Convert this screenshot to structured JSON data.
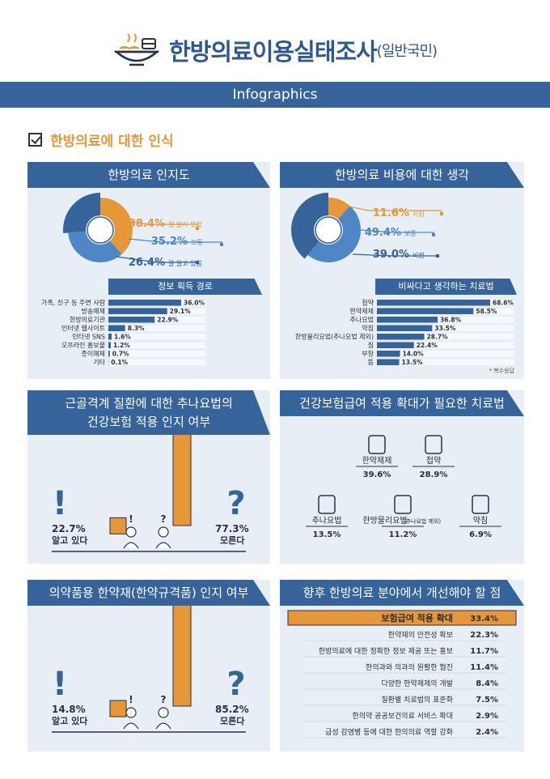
{
  "header": {
    "title": "한방의료이용실태조사",
    "subtitle": "(일반국민)",
    "banner": "Infographics",
    "section": "한방의료에 대한 인식"
  },
  "colors": {
    "navy": "#35639a",
    "orange": "#e69738",
    "light": "#e7eef6",
    "midblue": "#4f86c6"
  },
  "panels": {
    "awareness": {
      "title": "한방의료 인지도",
      "sub": "정보 획득 경로"
    },
    "cost": {
      "title": "한방의료 비용에 대한 생각",
      "sub": "비싸다고 생각하는 치료법",
      "note": "* 복수응답"
    },
    "chuna": {
      "title_line1": "근골격계 질환에 대한 추나요법의",
      "title_line2": "건강보험 적용 인지 여부"
    },
    "expand": {
      "title": "건강보험급여 적용 확대가 필요한 치료법"
    },
    "herbal": {
      "title": "의약품용 한약재(한약규격품) 인지 여부"
    },
    "improve": {
      "title": "향후 한방의료 분야에서 개선해야 할 점"
    }
  },
  "chart_data": [
    {
      "type": "pie",
      "title": "한방의료 인지도",
      "labels": [
        "잘 알지 못함",
        "보통",
        "잘 알고 있음"
      ],
      "values": [
        38.4,
        35.2,
        26.4
      ],
      "value_labels": [
        "38.4%",
        "35.2%",
        "26.4%"
      ]
    },
    {
      "type": "bar",
      "title": "정보 획득 경로",
      "categories": [
        "가족, 친구 등 주변 사람",
        "방송매체",
        "한방의료기관",
        "인터넷 웹사이트",
        "인터넷 SNS",
        "오프라인 홍보물",
        "종이매체",
        "기타"
      ],
      "values": [
        36.0,
        29.1,
        22.9,
        8.3,
        1.6,
        1.2,
        0.7,
        0.1
      ],
      "value_labels": [
        "36.0%",
        "29.1%",
        "22.9%",
        "8.3%",
        "1.6%",
        "1.2%",
        "0.7%",
        "0.1%"
      ]
    },
    {
      "type": "pie",
      "title": "한방의료 비용에 대한 생각",
      "labels": [
        "저렴",
        "보통",
        "비쌈"
      ],
      "values": [
        11.6,
        49.4,
        39.0
      ],
      "value_labels": [
        "11.6%",
        "49.4%",
        "39.0%"
      ]
    },
    {
      "type": "bar",
      "title": "비싸다고 생각하는 치료법",
      "categories": [
        "첩약",
        "한약제제",
        "추나요법",
        "약침",
        "한방물리요법(추나요법 제외)",
        "침",
        "부항",
        "뜸"
      ],
      "values": [
        68.6,
        58.5,
        36.8,
        33.5,
        28.7,
        22.4,
        14.0,
        13.5
      ],
      "value_labels": [
        "68.6%",
        "58.5%",
        "36.8%",
        "33.5%",
        "28.7%",
        "22.4%",
        "14.0%",
        "13.5%"
      ]
    },
    {
      "type": "bar",
      "title": "근골격계 질환에 대한 추나요법의 건강보험 적용 인지 여부",
      "categories": [
        "알고 있다",
        "모른다"
      ],
      "values": [
        22.7,
        77.3
      ],
      "value_labels": [
        "22.7%",
        "77.3%"
      ]
    },
    {
      "type": "table",
      "title": "건강보험급여 적용 확대가 필요한 치료법",
      "categories": [
        "한약제제",
        "첩약",
        "추나요법",
        "한방물리요법",
        "약침"
      ],
      "category_notes": [
        "",
        "",
        "",
        "(추나요법 제외)",
        ""
      ],
      "values": [
        39.6,
        28.9,
        13.5,
        11.2,
        6.9
      ],
      "value_labels": [
        "39.6%",
        "28.9%",
        "13.5%",
        "11.2%",
        "6.9%"
      ]
    },
    {
      "type": "bar",
      "title": "의약품용 한약재(한약규격품) 인지 여부",
      "categories": [
        "알고 있다",
        "모른다"
      ],
      "values": [
        14.8,
        85.2
      ],
      "value_labels": [
        "14.8%",
        "85.2%"
      ]
    },
    {
      "type": "table",
      "title": "향후 한방의료 분야에서 개선해야 할 점",
      "categories": [
        "보험급여 적용 확대",
        "한약재의 안전성 확보",
        "한방의료에 대한 정확한 정보 제공 또는 홍보",
        "한의과와 의과의 원활한 협진",
        "다양한 한약제제의 개발",
        "질환별 치료법의 표준화",
        "한의약 공공보건의료 서비스 확대",
        "급성 감염병 등에 대한 한의의료 역할 강화"
      ],
      "values": [
        33.4,
        22.3,
        11.7,
        11.4,
        8.4,
        7.5,
        2.9,
        2.4
      ],
      "value_labels": [
        "33.4%",
        "22.3%",
        "11.7%",
        "11.4%",
        "8.4%",
        "7.5%",
        "2.9%",
        "2.4%"
      ]
    }
  ]
}
